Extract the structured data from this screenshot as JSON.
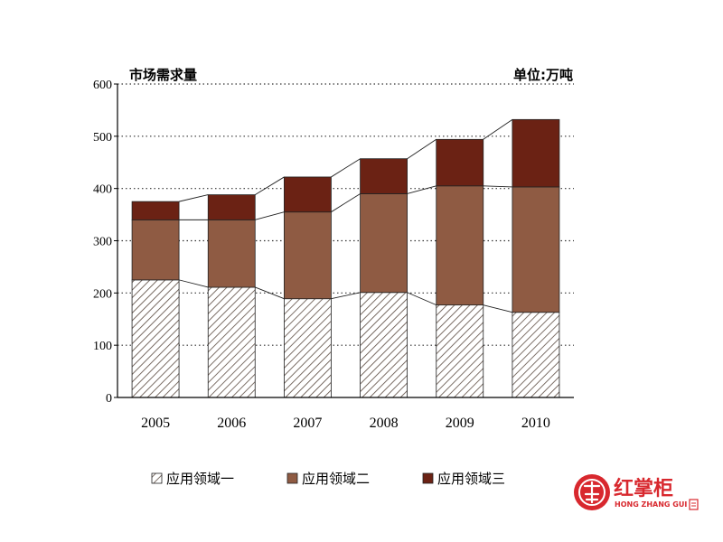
{
  "chart_data": {
    "type": "bar",
    "stacked": true,
    "title": "市场需求量",
    "unit_label": "单位:万吨",
    "categories": [
      "2005",
      "2006",
      "2007",
      "2008",
      "2009",
      "2010"
    ],
    "series": [
      {
        "name": "应用领域一",
        "values": [
          225,
          211,
          189,
          201,
          177,
          163
        ],
        "color": "#ffffff",
        "pattern": "diagonal-hatch"
      },
      {
        "name": "应用领域二",
        "values": [
          115,
          129,
          166,
          189,
          228,
          240
        ],
        "color": "#8f5b43"
      },
      {
        "name": "应用领域三",
        "values": [
          35,
          48,
          67,
          67,
          89,
          129
        ],
        "color": "#6b2214"
      }
    ],
    "ylim": [
      0,
      600
    ],
    "yticks": [
      0,
      100,
      200,
      300,
      400,
      500,
      600
    ],
    "grid": "dotted-horizontal",
    "legend_position": "bottom"
  },
  "logo": {
    "name": "红掌柜",
    "subtitle": "HONG ZHANG GUI",
    "color": "#d8282e"
  }
}
